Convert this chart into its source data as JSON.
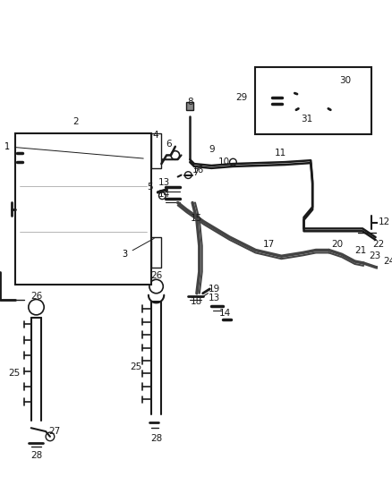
{
  "bg_color": "#ffffff",
  "line_color": "#000000",
  "fig_width": 4.38,
  "fig_height": 5.33,
  "dpi": 100
}
